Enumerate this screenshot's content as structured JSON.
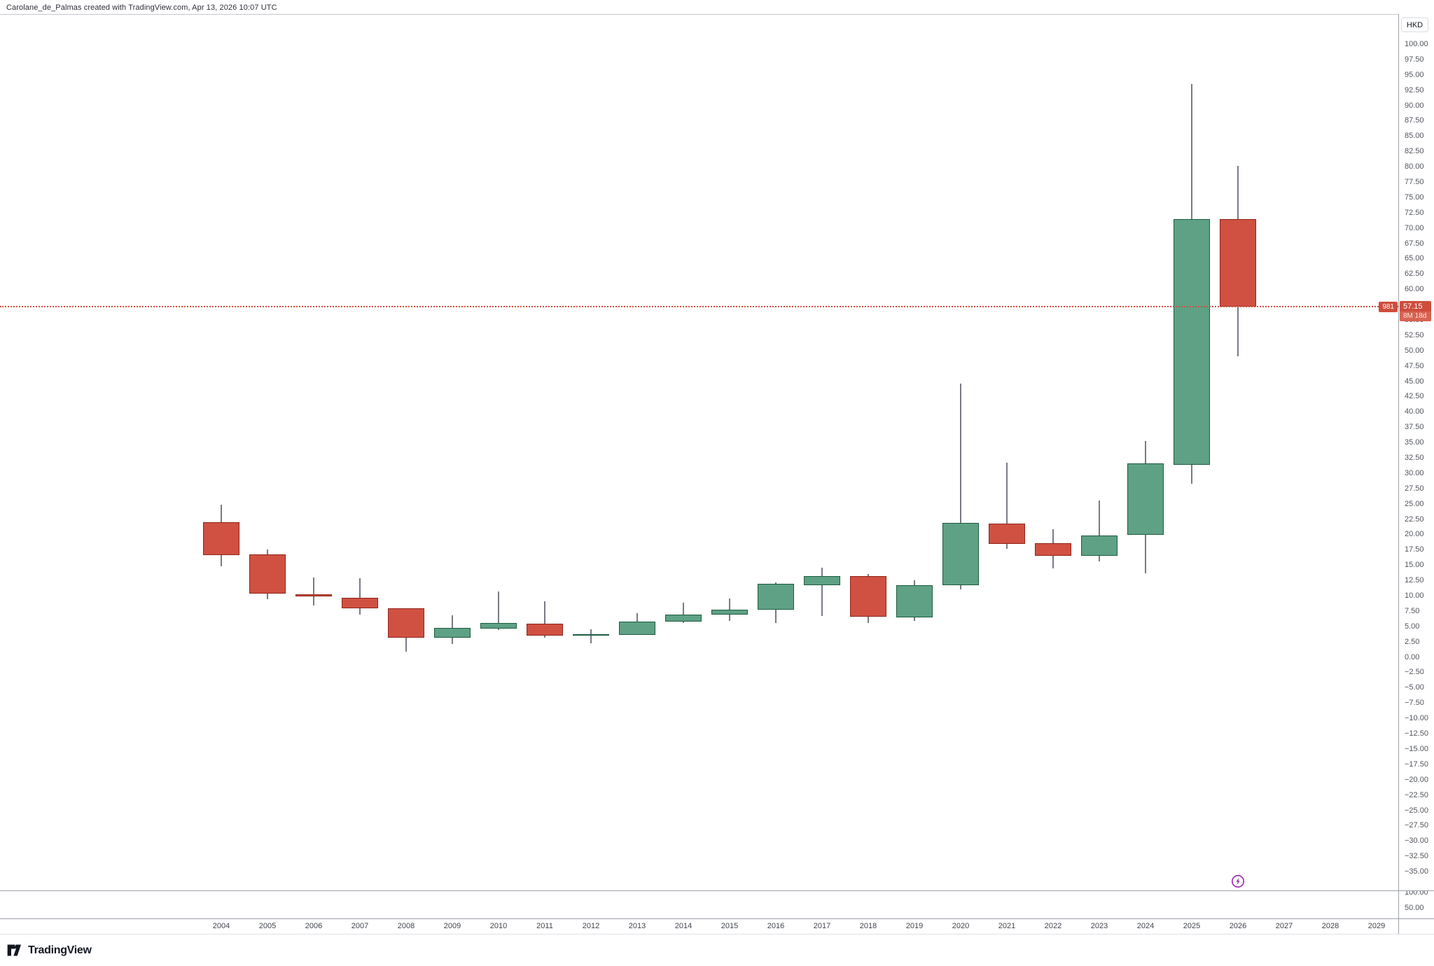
{
  "watermark": "Carolane_de_Palmas created with TradingView.com, Apr 13, 2026 10:07 UTC",
  "price_axis": {
    "currency": "HKD",
    "pane2_tick_labels": [
      "100.00",
      "50.00"
    ]
  },
  "price_label": {
    "symbol_badge": "981",
    "price": "57.15",
    "countdown": "8M 18d"
  },
  "logo": {
    "text": "TradingView"
  },
  "icons": {
    "bolt_icon": "lightning-in-circle",
    "bolt_color": "#9c27b0"
  },
  "chart_data": {
    "type": "candlestick",
    "title": "",
    "symbol": "981",
    "currency": "HKD",
    "timeframe": "yearly",
    "last_price": 57.15,
    "bar_close_countdown": "8M 18d",
    "grid": false,
    "y_axis": {
      "min": -35,
      "max": 100,
      "step": 2.5,
      "pane2_ticks": [
        100,
        50
      ]
    },
    "x_axis": {
      "years": [
        2004,
        2005,
        2006,
        2007,
        2008,
        2009,
        2010,
        2011,
        2012,
        2013,
        2014,
        2015,
        2016,
        2017,
        2018,
        2019,
        2020,
        2021,
        2022,
        2023,
        2024,
        2025,
        2026,
        2027,
        2028,
        2029
      ]
    },
    "candles": [
      {
        "year": 2004,
        "o": 22.0,
        "h": 24.8,
        "l": 14.8,
        "c": 16.6
      },
      {
        "year": 2005,
        "o": 16.7,
        "h": 17.5,
        "l": 9.4,
        "c": 10.4
      },
      {
        "year": 2006,
        "o": 10.2,
        "h": 13.0,
        "l": 8.4,
        "c": 9.9
      },
      {
        "year": 2007,
        "o": 9.7,
        "h": 12.9,
        "l": 6.9,
        "c": 8.0
      },
      {
        "year": 2008,
        "o": 7.9,
        "h": 7.9,
        "l": 0.9,
        "c": 3.1
      },
      {
        "year": 2009,
        "o": 3.1,
        "h": 6.8,
        "l": 2.1,
        "c": 4.8
      },
      {
        "year": 2010,
        "o": 4.6,
        "h": 10.7,
        "l": 4.4,
        "c": 5.5
      },
      {
        "year": 2011,
        "o": 5.4,
        "h": 9.1,
        "l": 3.1,
        "c": 3.5
      },
      {
        "year": 2012,
        "o": 3.5,
        "h": 4.5,
        "l": 2.2,
        "c": 3.7
      },
      {
        "year": 2013,
        "o": 3.6,
        "h": 7.1,
        "l": 3.6,
        "c": 5.8
      },
      {
        "year": 2014,
        "o": 5.8,
        "h": 8.9,
        "l": 5.5,
        "c": 6.9
      },
      {
        "year": 2015,
        "o": 6.9,
        "h": 9.6,
        "l": 5.9,
        "c": 7.7
      },
      {
        "year": 2016,
        "o": 7.7,
        "h": 12.2,
        "l": 5.6,
        "c": 11.9
      },
      {
        "year": 2017,
        "o": 11.7,
        "h": 14.6,
        "l": 6.7,
        "c": 13.2
      },
      {
        "year": 2018,
        "o": 13.2,
        "h": 13.5,
        "l": 5.6,
        "c": 6.6
      },
      {
        "year": 2019,
        "o": 6.5,
        "h": 12.5,
        "l": 5.9,
        "c": 11.7
      },
      {
        "year": 2020,
        "o": 11.7,
        "h": 44.6,
        "l": 11.0,
        "c": 21.9
      },
      {
        "year": 2021,
        "o": 21.8,
        "h": 31.7,
        "l": 17.7,
        "c": 18.5
      },
      {
        "year": 2022,
        "o": 18.6,
        "h": 20.8,
        "l": 14.5,
        "c": 16.5
      },
      {
        "year": 2023,
        "o": 16.5,
        "h": 25.5,
        "l": 15.6,
        "c": 19.8
      },
      {
        "year": 2024,
        "o": 19.9,
        "h": 35.3,
        "l": 13.7,
        "c": 31.6
      },
      {
        "year": 2025,
        "o": 31.4,
        "h": 93.5,
        "l": 28.3,
        "c": 71.4
      },
      {
        "year": 2026,
        "o": 71.4,
        "h": 80.1,
        "l": 49.1,
        "c": 57.15
      }
    ],
    "colors": {
      "up_body": "#5fa185",
      "up_border": "#1d5c40",
      "down_body": "#d05142",
      "down_border": "#8f241a",
      "wick": "#787b86",
      "price_line": "#d0513f",
      "label_bg": "#cf4d3c"
    }
  }
}
